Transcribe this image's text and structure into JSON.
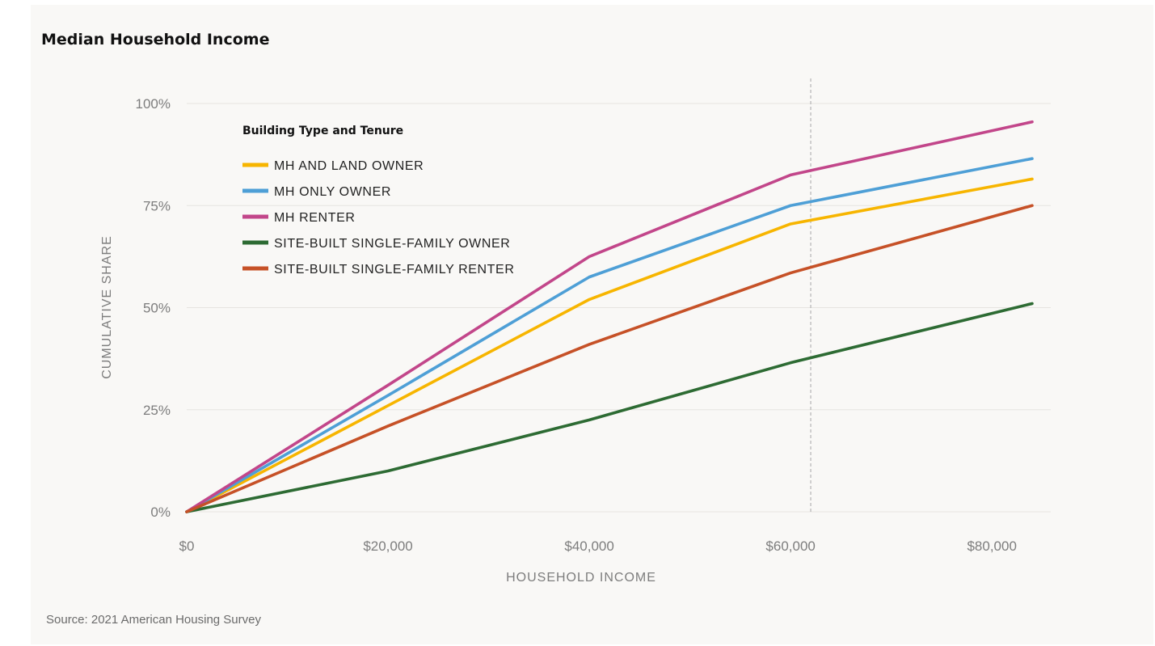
{
  "title": "Median Household Income",
  "source": "Source: 2021 American Housing Survey",
  "chart_data": {
    "type": "line",
    "title": "Median Household Income",
    "xlabel": "HOUSEHOLD INCOME",
    "ylabel": "CUMULATIVE SHARE",
    "xlim": [
      0,
      84000
    ],
    "ylim": [
      0,
      100
    ],
    "x_ticks": [
      0,
      20000,
      40000,
      60000,
      80000
    ],
    "x_tick_labels": [
      "$0",
      "$20,000",
      "$40,000",
      "$60,000",
      "$80,000"
    ],
    "y_ticks": [
      0,
      25,
      50,
      75,
      100
    ],
    "y_tick_labels": [
      "0%",
      "25%",
      "50%",
      "75%",
      "100%"
    ],
    "grid": "horizontal",
    "reference_line_x": 62000,
    "legend": {
      "title": "Building Type and Tenure",
      "placement": "top-left"
    },
    "x": [
      0,
      20000,
      40000,
      60000,
      84000
    ],
    "series": [
      {
        "name": "MH AND LAND OWNER",
        "color": "#f7b500",
        "values": [
          0,
          26,
          52,
          70.5,
          81.5
        ]
      },
      {
        "name": "MH ONLY OWNER",
        "color": "#4e9fd6",
        "values": [
          0,
          28.5,
          57.5,
          75,
          86.5
        ]
      },
      {
        "name": "MH RENTER",
        "color": "#c2468a",
        "values": [
          0,
          31,
          62.5,
          82.5,
          95.5
        ]
      },
      {
        "name": "SITE-BUILT SINGLE-FAMILY OWNER",
        "color": "#2d6b33",
        "values": [
          0,
          10,
          22.5,
          36.5,
          51
        ]
      },
      {
        "name": "SITE-BUILT SINGLE-FAMILY RENTER",
        "color": "#c65127",
        "values": [
          0,
          21,
          41,
          58.5,
          75
        ]
      }
    ]
  }
}
